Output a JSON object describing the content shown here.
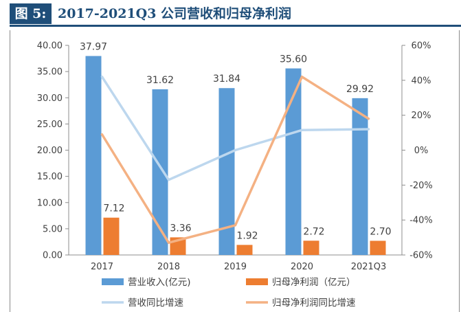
{
  "header": {
    "fig_tag": "图 5:",
    "title": "2017-2021Q3 公司营收和归母净利润"
  },
  "colors": {
    "header": "#1f4e79",
    "revenue_bar": "#5b9bd5",
    "profit_bar": "#ed7d31",
    "revenue_growth_line": "#bdd7ee",
    "profit_growth_line": "#f4b183"
  },
  "chart_data": {
    "type": "bar",
    "title": "2017-2021Q3 公司营收和归母净利润",
    "categories": [
      "2017",
      "2018",
      "2019",
      "2020",
      "2021Q3"
    ],
    "left_axis": {
      "ylim": [
        0,
        40
      ],
      "ticks": [
        "0.00",
        "5.00",
        "10.00",
        "15.00",
        "20.00",
        "25.00",
        "30.00",
        "35.00",
        "40.00"
      ]
    },
    "right_axis": {
      "ylim": [
        -60,
        60
      ],
      "ticks": [
        "-60%",
        "-40%",
        "-20%",
        "0%",
        "20%",
        "40%",
        "60%"
      ]
    },
    "series": [
      {
        "name": "营业收入(亿元)",
        "kind": "bar",
        "axis": "left",
        "values": [
          37.97,
          31.62,
          31.84,
          35.6,
          29.92
        ],
        "labels": [
          "37.97",
          "31.62",
          "31.84",
          "35.60",
          "29.92"
        ]
      },
      {
        "name": "归母净利润（亿元）",
        "kind": "bar",
        "axis": "left",
        "values": [
          7.12,
          3.36,
          1.92,
          2.72,
          2.7
        ],
        "labels": [
          "7.12",
          "3.36",
          "1.92",
          "2.72",
          "2.70"
        ]
      },
      {
        "name": "营收同比增速",
        "kind": "line",
        "axis": "right",
        "values": [
          42,
          -17,
          0,
          11.5,
          12
        ]
      },
      {
        "name": "归母净利润同比增速",
        "kind": "line",
        "axis": "right",
        "values": [
          9,
          -53,
          -43,
          42,
          18
        ]
      }
    ],
    "grid": false,
    "legend_position": "bottom"
  }
}
